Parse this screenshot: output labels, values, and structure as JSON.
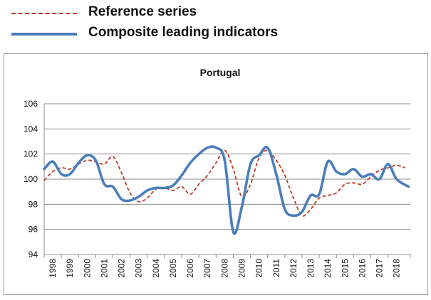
{
  "legend": {
    "items": [
      {
        "label": "Reference series",
        "color": "#c0392b",
        "style": "dashed"
      },
      {
        "label": "Composite leading indicators",
        "color": "#4a7ebb",
        "style": "solid"
      }
    ]
  },
  "chart_data": {
    "type": "line",
    "title": "Portugal",
    "xlabel": "",
    "ylabel": "",
    "ylim": [
      94,
      106
    ],
    "yticks": [
      94,
      96,
      98,
      100,
      102,
      104,
      106
    ],
    "xlim": [
      1998,
      2019.3
    ],
    "categories": [
      "1998",
      "1999",
      "2000",
      "2001",
      "2002",
      "2003",
      "2004",
      "2005",
      "2006",
      "2007",
      "2008",
      "2009",
      "2010",
      "2011",
      "2012",
      "2013",
      "2014",
      "2015",
      "2016",
      "2017",
      "2018"
    ],
    "grid": "horizontal",
    "series": [
      {
        "name": "Reference series",
        "color": "#c0392b",
        "style": "dashed",
        "x": [
          1998.0,
          1998.5,
          1999.0,
          1999.5,
          2000.0,
          2000.5,
          2001.0,
          2001.5,
          2002.0,
          2002.5,
          2003.0,
          2003.5,
          2004.0,
          2004.5,
          2005.0,
          2005.5,
          2006.0,
          2006.5,
          2007.0,
          2007.5,
          2008.0,
          2008.5,
          2009.0,
          2009.5,
          2010.0,
          2010.5,
          2011.0,
          2011.5,
          2012.0,
          2012.5,
          2013.0,
          2013.5,
          2014.0,
          2014.5,
          2015.0,
          2015.5,
          2016.0,
          2016.5,
          2017.0,
          2017.5,
          2018.0,
          2018.5,
          2019.0
        ],
        "values": [
          99.9,
          100.6,
          100.9,
          100.8,
          101.2,
          101.5,
          101.4,
          101.2,
          101.8,
          100.5,
          98.9,
          98.2,
          98.5,
          99.2,
          99.3,
          99.1,
          99.4,
          98.8,
          99.6,
          100.3,
          101.3,
          102.3,
          100.8,
          98.6,
          99.6,
          101.7,
          102.3,
          101.5,
          100.3,
          98.5,
          97.1,
          97.6,
          98.5,
          98.7,
          98.9,
          99.6,
          99.7,
          99.6,
          100.2,
          100.7,
          100.9,
          101.1,
          100.9
        ]
      },
      {
        "name": "Composite leading indicators",
        "color": "#4a7ebb",
        "style": "solid",
        "x": [
          1998.0,
          1998.5,
          1999.0,
          1999.5,
          2000.0,
          2000.5,
          2001.0,
          2001.5,
          2002.0,
          2002.5,
          2003.0,
          2003.5,
          2004.0,
          2004.5,
          2005.0,
          2005.5,
          2006.0,
          2006.5,
          2007.0,
          2007.5,
          2008.0,
          2008.5,
          2009.0,
          2009.5,
          2010.0,
          2010.5,
          2011.0,
          2011.5,
          2012.0,
          2012.5,
          2013.0,
          2013.5,
          2014.0,
          2014.5,
          2015.0,
          2015.5,
          2016.0,
          2016.5,
          2017.0,
          2017.5,
          2018.0,
          2018.5,
          2019.2
        ],
        "values": [
          100.8,
          101.4,
          100.4,
          100.4,
          101.3,
          101.9,
          101.5,
          99.6,
          99.4,
          98.4,
          98.3,
          98.6,
          99.1,
          99.3,
          99.3,
          99.5,
          100.3,
          101.3,
          102.0,
          102.5,
          102.5,
          101.5,
          95.8,
          97.8,
          101.2,
          101.9,
          102.5,
          100.4,
          97.6,
          97.1,
          97.4,
          98.7,
          98.8,
          101.4,
          100.6,
          100.4,
          100.8,
          100.2,
          100.4,
          100.0,
          101.2,
          100.0,
          99.4
        ]
      }
    ]
  }
}
